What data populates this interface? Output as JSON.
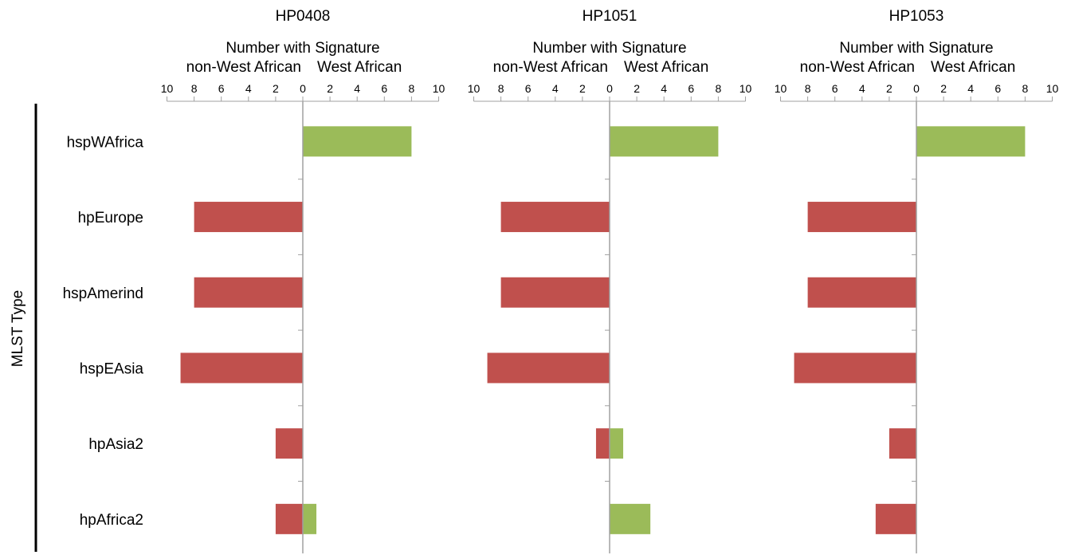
{
  "y_axis_title": "MLST Type",
  "categories": [
    "hspWAfrica",
    "hpEurope",
    "hspAmerind",
    "hspEAsia",
    "hpAsia2",
    "hpAfrica2"
  ],
  "x_axis": {
    "title": "Number with Signature",
    "left_label": "non-West African",
    "right_label": "West African",
    "tick_labels": [
      "10",
      "8",
      "6",
      "4",
      "2",
      "0",
      "2",
      "4",
      "6",
      "8",
      "10"
    ]
  },
  "colors": {
    "west_african": "#9bbb59",
    "non_west_african": "#c0504d",
    "axis": "#a0a0a0"
  },
  "chart_data": [
    {
      "type": "bar",
      "orientation": "horizontal-diverging",
      "title": "HP0408",
      "categories": [
        "hspWAfrica",
        "hpEurope",
        "hspAmerind",
        "hspEAsia",
        "hpAsia2",
        "hpAfrica2"
      ],
      "xlim": [
        -10,
        10
      ],
      "series": [
        {
          "name": "non-West African",
          "values": [
            0,
            8,
            8,
            9,
            2,
            2
          ]
        },
        {
          "name": "West African",
          "values": [
            8,
            0,
            0,
            0,
            0,
            1
          ]
        }
      ]
    },
    {
      "type": "bar",
      "orientation": "horizontal-diverging",
      "title": "HP1051",
      "categories": [
        "hspWAfrica",
        "hpEurope",
        "hspAmerind",
        "hspEAsia",
        "hpAsia2",
        "hpAfrica2"
      ],
      "xlim": [
        -10,
        10
      ],
      "series": [
        {
          "name": "non-West African",
          "values": [
            0,
            8,
            8,
            9,
            1,
            0
          ]
        },
        {
          "name": "West African",
          "values": [
            8,
            0,
            0,
            0,
            1,
            3
          ]
        }
      ]
    },
    {
      "type": "bar",
      "orientation": "horizontal-diverging",
      "title": "HP1053",
      "categories": [
        "hspWAfrica",
        "hpEurope",
        "hspAmerind",
        "hspEAsia",
        "hpAsia2",
        "hpAfrica2"
      ],
      "xlim": [
        -10,
        10
      ],
      "series": [
        {
          "name": "non-West African",
          "values": [
            0,
            8,
            8,
            9,
            2,
            3
          ]
        },
        {
          "name": "West African",
          "values": [
            8,
            0,
            0,
            0,
            0,
            0
          ]
        }
      ]
    }
  ]
}
